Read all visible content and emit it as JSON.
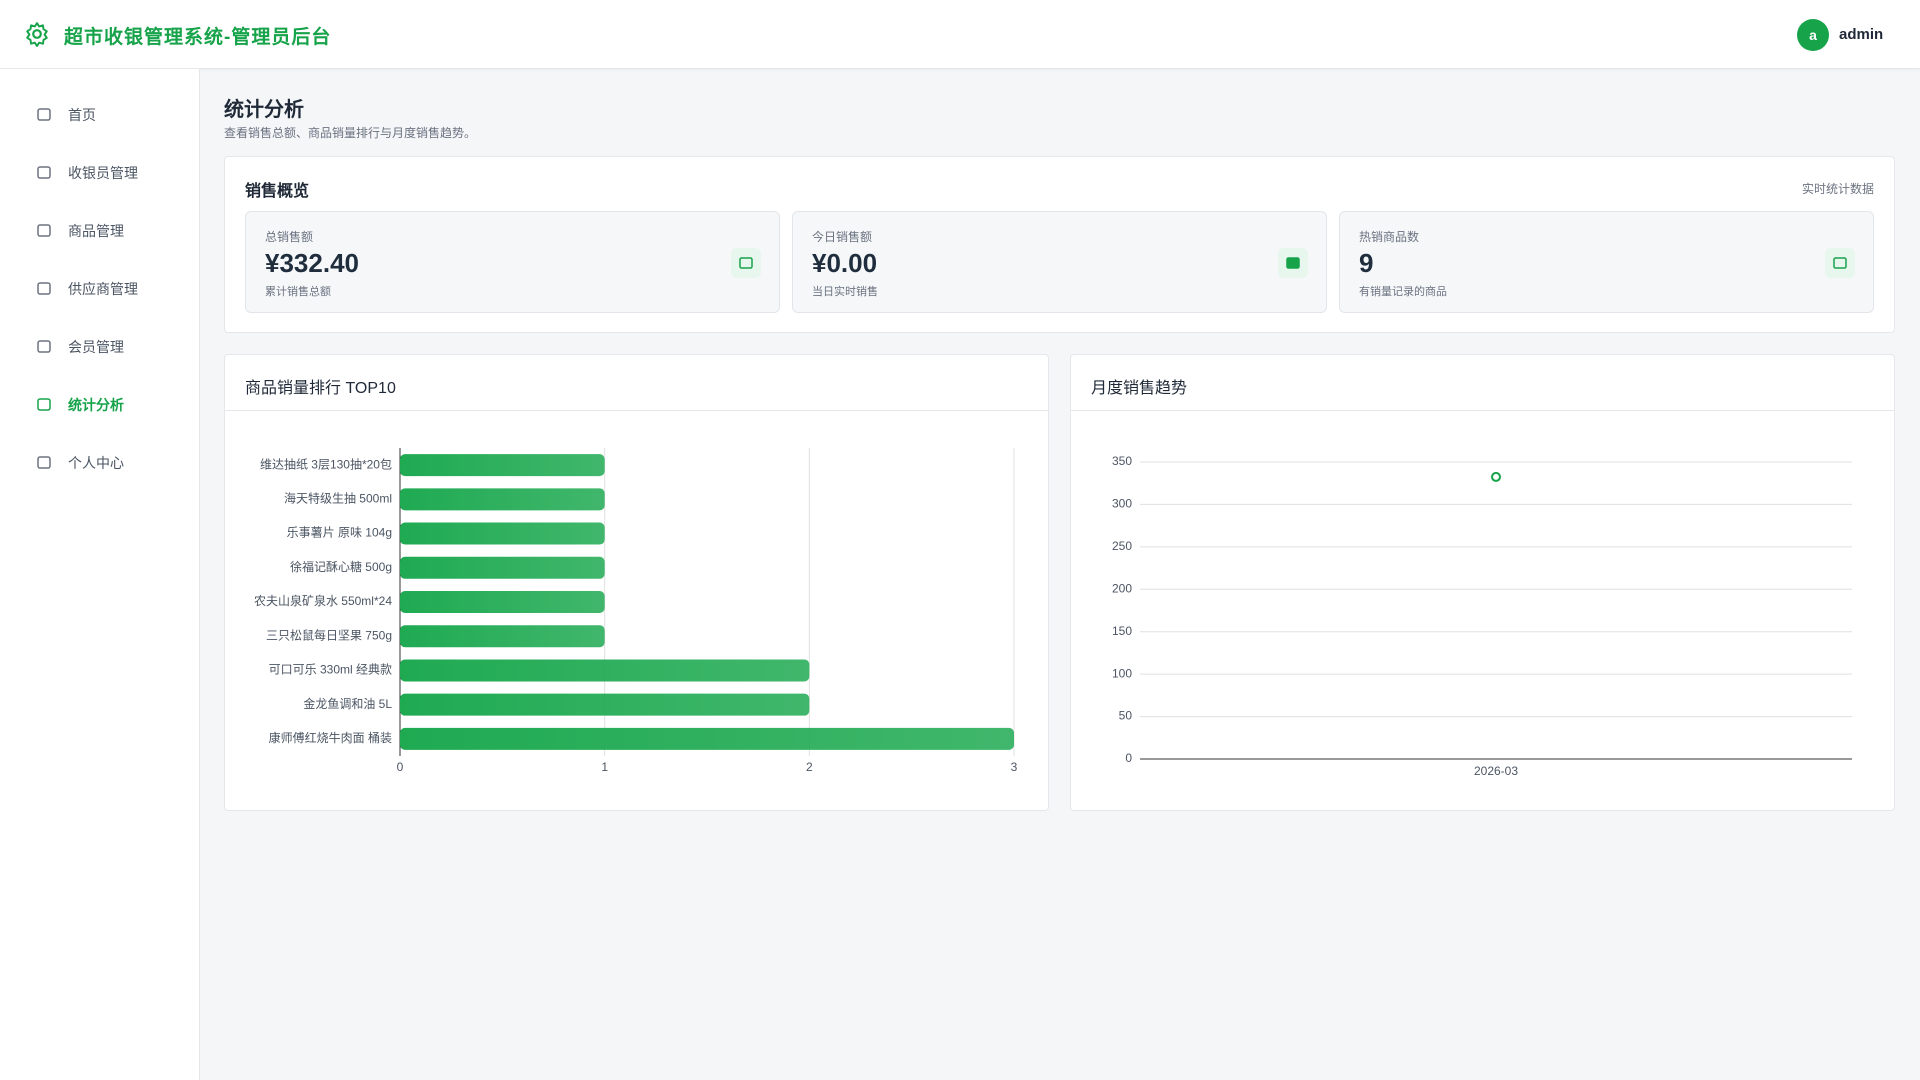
{
  "header": {
    "title": "超市收银管理系统-管理员后台",
    "avatar": "a",
    "user": "admin"
  },
  "nav": [
    "首页",
    "收银员管理",
    "商品管理",
    "供应商管理",
    "会员管理",
    "统计分析",
    "个人中心"
  ],
  "page": {
    "title": "统计分析",
    "subtitle": "查看销售总额、商品销量排行与月度销售趋势。"
  },
  "overview": {
    "title": "销售概览",
    "note": "实时统计数据",
    "cards": [
      {
        "label": "总销售额",
        "value": "¥332.40",
        "note": "累计销售总额"
      },
      {
        "label": "今日销售额",
        "value": "¥0.00",
        "note": "当日实时销售"
      },
      {
        "label": "热销商品数",
        "value": "9",
        "note": "有销量记录的商品"
      }
    ]
  },
  "chart_data": [
    {
      "type": "bar",
      "title": "商品销量排行 TOP10",
      "orientation": "horizontal",
      "color": "#1faa52",
      "categories": [
        "维达抽纸 3层130抽*20包",
        "海天特级生抽 500ml",
        "乐事薯片 原味 104g",
        "徐福记酥心糖 500g",
        "农夫山泉矿泉水 550ml*24",
        "三只松鼠每日坚果 750g",
        "可口可乐 330ml 经典款",
        "金龙鱼调和油 5L",
        "康师傅红烧牛肉面 桶装"
      ],
      "values": [
        1,
        1,
        1,
        1,
        1,
        1,
        2,
        2,
        3
      ],
      "xlim": [
        0,
        3
      ],
      "xticks": [
        0,
        1,
        2,
        3
      ],
      "grid": true
    },
    {
      "type": "line",
      "title": "月度销售趋势",
      "color": "#16a34a",
      "x": [
        "2026-03"
      ],
      "values": [
        332.4
      ],
      "ylim": [
        0,
        350
      ],
      "yticks": [
        0,
        50,
        100,
        150,
        200,
        250,
        300,
        350
      ],
      "grid": true
    }
  ]
}
